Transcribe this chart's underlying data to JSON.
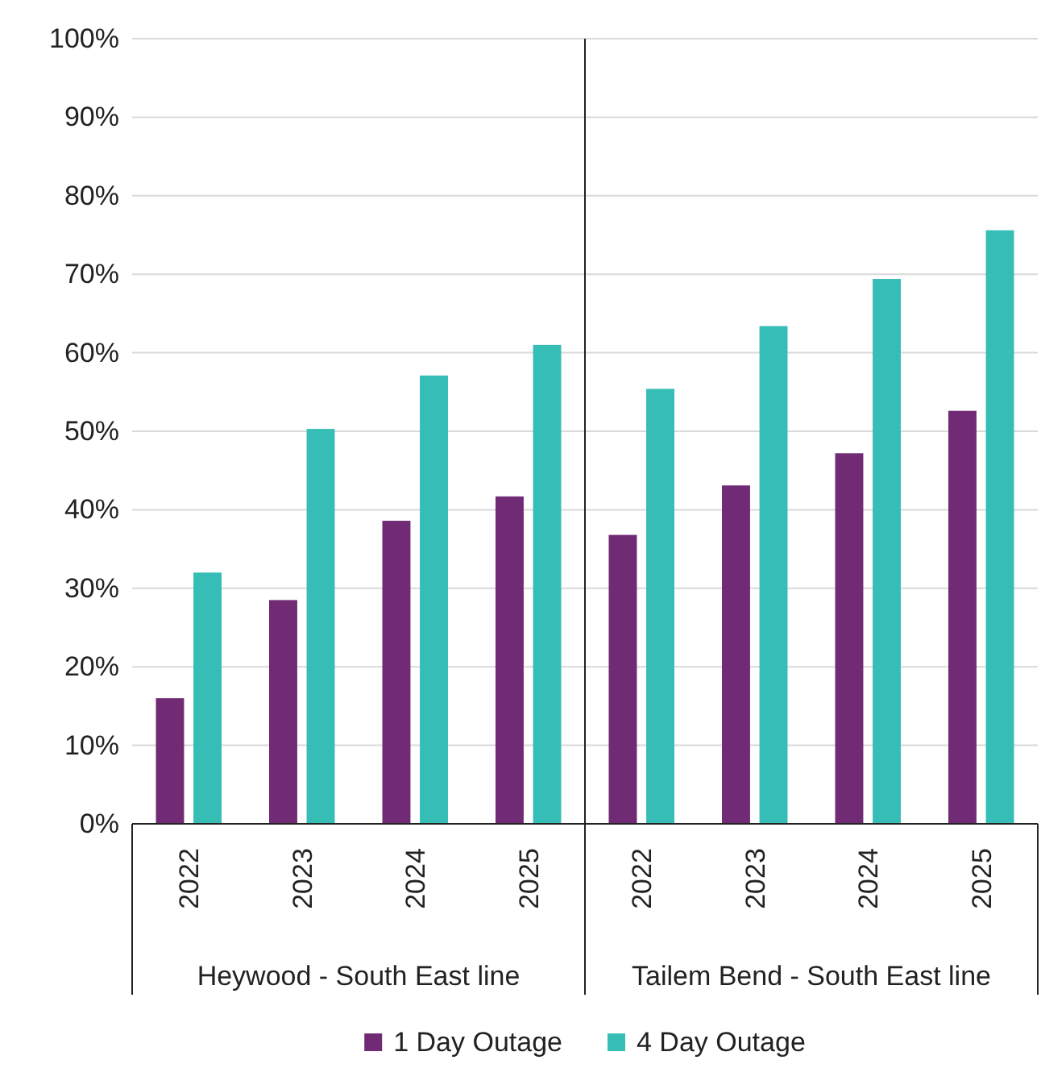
{
  "chart_data": [
    {
      "type": "bar",
      "categories": [
        "2022",
        "2023",
        "2024",
        "2025"
      ],
      "series": [
        {
          "name": "1 Day Outage",
          "color": "#702b74",
          "values": [
            16.0,
            28.5,
            38.6,
            41.7
          ]
        },
        {
          "name": "4 Day Outage",
          "color": "#36bdb5",
          "values": [
            32.0,
            50.3,
            57.1,
            61.0
          ]
        }
      ],
      "xlabel": "Heywood - South East line",
      "ylim": [
        0,
        100
      ],
      "yticks": [
        {
          "value": 0,
          "label": "0%"
        },
        {
          "value": 10,
          "label": "10%"
        },
        {
          "value": 20,
          "label": "20%"
        },
        {
          "value": 30,
          "label": "30%"
        },
        {
          "value": 40,
          "label": "40%"
        },
        {
          "value": 50,
          "label": "50%"
        },
        {
          "value": 60,
          "label": "60%"
        },
        {
          "value": 70,
          "label": "70%"
        },
        {
          "value": 80,
          "label": "80%"
        },
        {
          "value": 90,
          "label": "90%"
        },
        {
          "value": 100,
          "label": "100%"
        }
      ],
      "grid": "y",
      "legend": "bottom"
    },
    {
      "type": "bar",
      "categories": [
        "2022",
        "2023",
        "2024",
        "2025"
      ],
      "series": [
        {
          "color": "#702b74",
          "values": [
            36.8,
            43.1,
            47.2,
            52.6
          ]
        },
        {
          "color": "#36bdb5",
          "values": [
            55.4,
            63.4,
            69.4,
            75.6
          ]
        }
      ],
      "xlabel": "Tailem Bend - South East line",
      "ylim": [
        0,
        100
      ],
      "yticks": [
        0,
        10,
        20,
        30,
        40,
        50,
        60,
        70,
        80,
        90,
        100
      ],
      "grid": "y",
      "tick_labels": "x"
    }
  ]
}
